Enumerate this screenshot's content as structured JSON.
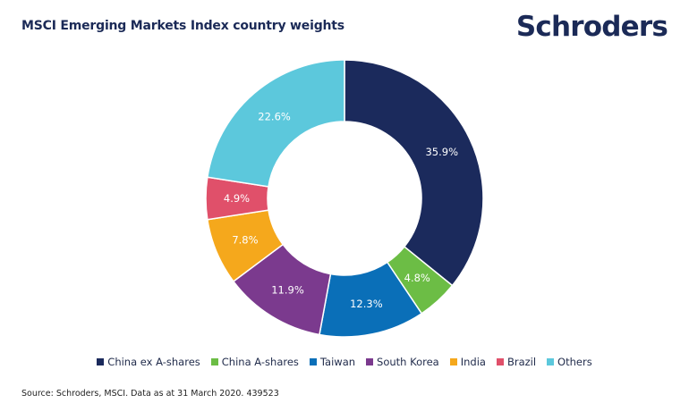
{
  "header": {
    "title": "MSCI Emerging Markets Index country weights",
    "logo_text": "Schroders"
  },
  "chart_data": {
    "type": "pie",
    "subtype": "donut",
    "title": "MSCI Emerging Markets Index country weights",
    "categories": [
      "China ex A-shares",
      "China A-shares",
      "Taiwan",
      "South Korea",
      "India",
      "Brazil",
      "Others"
    ],
    "values": [
      35.9,
      4.8,
      12.3,
      11.9,
      7.8,
      4.9,
      22.6
    ],
    "labels": [
      "35.9%",
      "4.8%",
      "12.3%",
      "11.9%",
      "7.8%",
      "4.9%",
      "22.6%"
    ],
    "colors": [
      "#1b2a5c",
      "#6cbd45",
      "#0a6fb8",
      "#7b3a8e",
      "#f5a81c",
      "#e0506a",
      "#5cc8dc"
    ],
    "legend_position": "bottom"
  },
  "footer": {
    "source": "Source: Schroders, MSCI. Data as at 31 March 2020. 439523"
  }
}
